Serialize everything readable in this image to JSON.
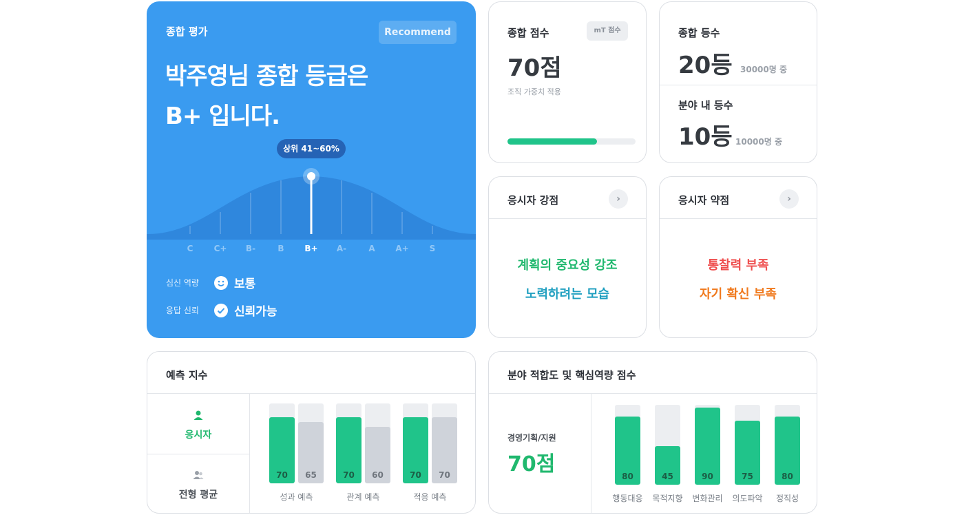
{
  "overall": {
    "label": "종합 평가",
    "recommend": "Recommend",
    "headline_line1": "박주영님 종합 등급은",
    "headline_line2": "B+ 입니다.",
    "percentile": "상위 41~60%",
    "grades": [
      "C",
      "C+",
      "B-",
      "B",
      "B+",
      "A-",
      "A",
      "A+",
      "S"
    ],
    "selected_grade": "B+",
    "mental_label": "심신 역량",
    "mental_value": "보통",
    "mental_icon": "smile-icon",
    "reliability_label": "응답 신뢰",
    "reliability_value": "신뢰가능",
    "reliability_icon": "check-circle-icon",
    "colors": {
      "background": "#3a9bf0",
      "bubble": "#2563b5"
    }
  },
  "score": {
    "title": "종합 점수",
    "chip": "mT 점수",
    "value": "70점",
    "note": "조직 가중치 적용",
    "progress": 0.7,
    "progress_color": "#20c48a"
  },
  "rank": {
    "title": "종합 등수",
    "value": "20등",
    "of": "30000명 중",
    "field_title": "분야 내 등수",
    "field_value": "10등",
    "field_of": "10000명 중"
  },
  "strengths": {
    "title": "응시자 강점",
    "items": [
      "계획의 중요성 강조",
      "노력하려는 모습"
    ],
    "colors": [
      "#20b86e",
      "#1f9fc0"
    ]
  },
  "weaknesses": {
    "title": "응시자 약점",
    "items": [
      "통찰력 부족",
      "자기 확신 부족"
    ],
    "colors": [
      "#ef4f4f",
      "#f07a1e"
    ]
  },
  "predict": {
    "title": "예측 지수",
    "candidate_label": "응시자",
    "average_label": "전형 평균",
    "chart_data": {
      "type": "bar",
      "categories": [
        "성과 예측",
        "관계 예측",
        "적응 예측"
      ],
      "series": [
        {
          "name": "응시자",
          "values": [
            70,
            70,
            70
          ],
          "color": "#20c48a"
        },
        {
          "name": "전형 평균",
          "values": [
            65,
            60,
            70
          ],
          "color": "#cfd3da"
        }
      ],
      "ylim": [
        0,
        100
      ]
    }
  },
  "field": {
    "title": "분야 적합도 및 핵심역량 점수",
    "job": "경영기획/지원",
    "value": "70점",
    "chart_data": {
      "type": "bar",
      "categories": [
        "행동대응",
        "목적지향",
        "변화관리",
        "의도파악",
        "정직성"
      ],
      "values": [
        80,
        45,
        90,
        75,
        80
      ],
      "color": "#20c48a",
      "ylim": [
        0,
        100
      ]
    }
  }
}
